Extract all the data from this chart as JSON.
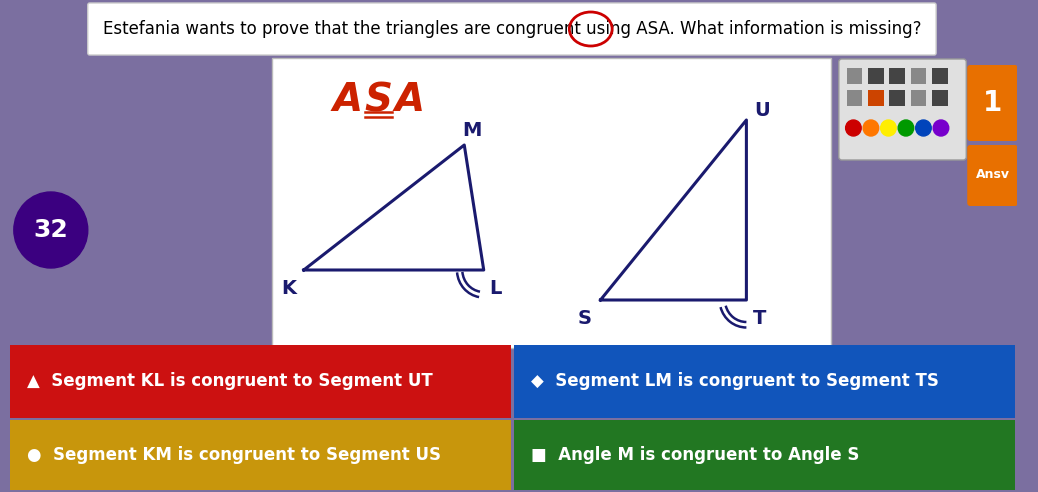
{
  "title": "Estefania wants to prove that the triangles are congruent using ASA. What information is missing?",
  "title_fontsize": 12,
  "bg_color": "#7B6FA0",
  "number_badge": "32",
  "number_badge_color": "#3B0080",
  "tri_color": "#1a1a6e",
  "asa_color": "#CC2200",
  "answers": [
    {
      "text": "▲  Segment KL is congruent to Segment UT",
      "bg": "#CC1111",
      "fg": "#FFFFFF"
    },
    {
      "text": "◆  Segment LM is congruent to Segment TS",
      "bg": "#1155BB",
      "fg": "#FFFFFF"
    },
    {
      "text": "●  Segment KM is congruent to Segment US",
      "bg": "#C8960C",
      "fg": "#FFFFFF"
    },
    {
      "text": "■  Angle M is congruent to Angle S",
      "bg": "#227722",
      "fg": "#FFFFFF"
    }
  ],
  "right_num": "1",
  "right_num_bg": "#E87000",
  "ansv_text": "Ansv",
  "ansv_bg": "#E87000",
  "toolbar_bg": "#E0E0E0",
  "dot_colors": [
    "#CC0000",
    "#FF7700",
    "#FFEE00",
    "#009900",
    "#0044BB",
    "#7700CC"
  ]
}
